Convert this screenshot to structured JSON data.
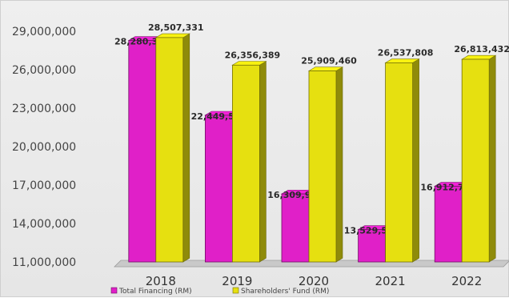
{
  "chart_data": {
    "type": "bar",
    "title": "",
    "xlabel": "",
    "ylabel": "",
    "categories": [
      "2018",
      "2019",
      "2020",
      "2021",
      "2022"
    ],
    "series": [
      {
        "name": "Total Financing (RM)",
        "color": "#e020c8",
        "values": [
          28280342,
          22449514,
          16309981,
          13529519,
          16912775
        ],
        "labels": [
          "28,280,342",
          "22,449,514",
          "16,309,981",
          "13,529,519",
          "16,912,775"
        ]
      },
      {
        "name": "Shareholders' Fund (RM)",
        "color": "#e6e010",
        "values": [
          28507331,
          26356389,
          25909460,
          26537808,
          26813432
        ],
        "labels": [
          "28,507,331",
          "26,356,389",
          "25,909,460",
          "26,537,808",
          "26,813,432"
        ]
      }
    ],
    "ylim": [
      11000000,
      29000000
    ],
    "yticks": [
      11000000,
      14000000,
      17000000,
      20000000,
      23000000,
      26000000,
      29000000
    ],
    "ytick_labels": [
      "11,000,000",
      "14,000,000",
      "17,000,000",
      "20,000,000",
      "23,000,000",
      "26,000,000",
      "29,000,000"
    ],
    "grid": false,
    "legend_position": "bottom"
  }
}
